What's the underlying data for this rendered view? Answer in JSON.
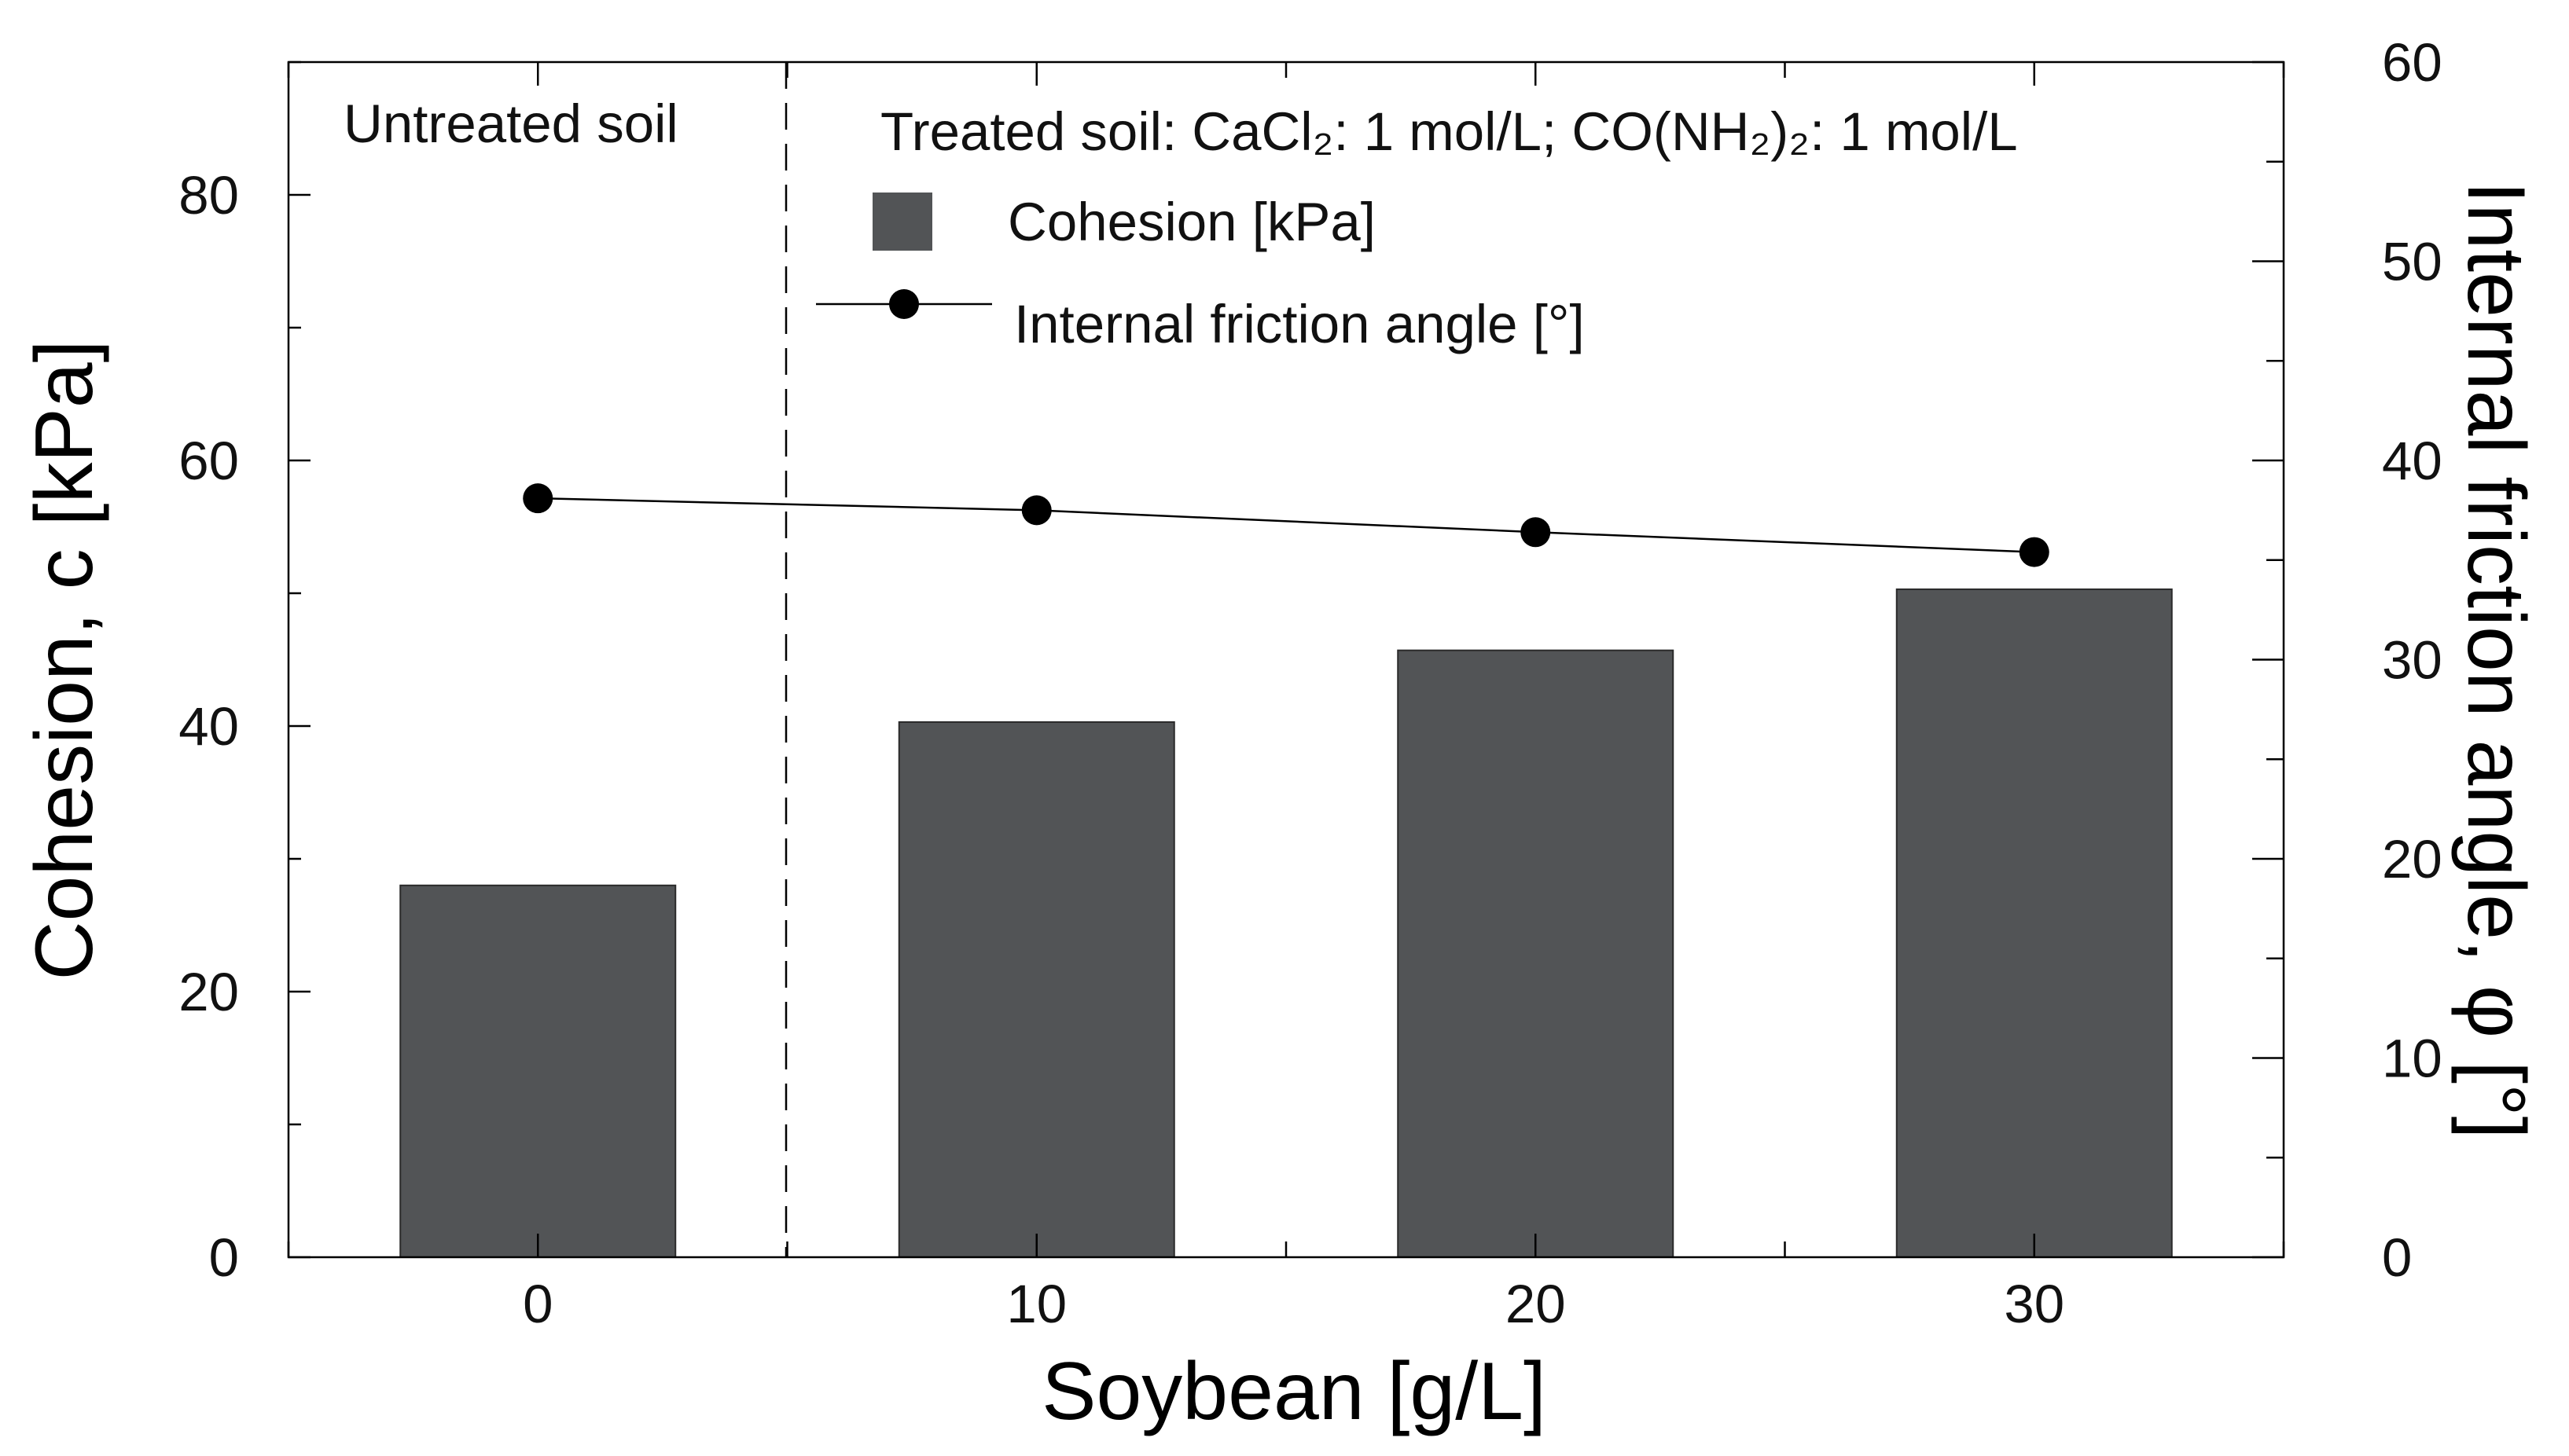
{
  "chart_data": {
    "type": "bar",
    "x_label": "Soybean [g/L]",
    "y_left_label": "Cohesion, c [kPa]",
    "y_right_label": "Internal friction angle, φ [°]",
    "categories": [
      "0",
      "10",
      "20",
      "30"
    ],
    "x_values": [
      0,
      10,
      20,
      30
    ],
    "x_range": [
      -5,
      35
    ],
    "y_left_range": [
      0,
      90
    ],
    "y_left_ticks": [
      0,
      20,
      40,
      60,
      80
    ],
    "y_right_range": [
      0,
      60
    ],
    "y_right_ticks": [
      0,
      10,
      20,
      30,
      40,
      50,
      60
    ],
    "series": [
      {
        "name": "Cohesion [kPa]",
        "type": "bar",
        "axis": "left",
        "values": [
          28.0,
          40.3,
          45.7,
          50.3
        ],
        "color": "#525456"
      },
      {
        "name": "Internal friction angle [°]",
        "type": "line",
        "axis": "right",
        "values": [
          38.1,
          37.5,
          36.4,
          35.4
        ],
        "color": "#000000"
      }
    ],
    "annotations": {
      "untreated": "Untreated soil",
      "treated": "Treated soil: CaCl₂: 1 mol/L; CO(NH₂)₂: 1 mol/L"
    },
    "legend": {
      "position": "top-right",
      "bar_label": "Cohesion [kPa]",
      "line_label": "Internal friction angle [°]"
    },
    "divider_x": 5,
    "grid": false
  }
}
